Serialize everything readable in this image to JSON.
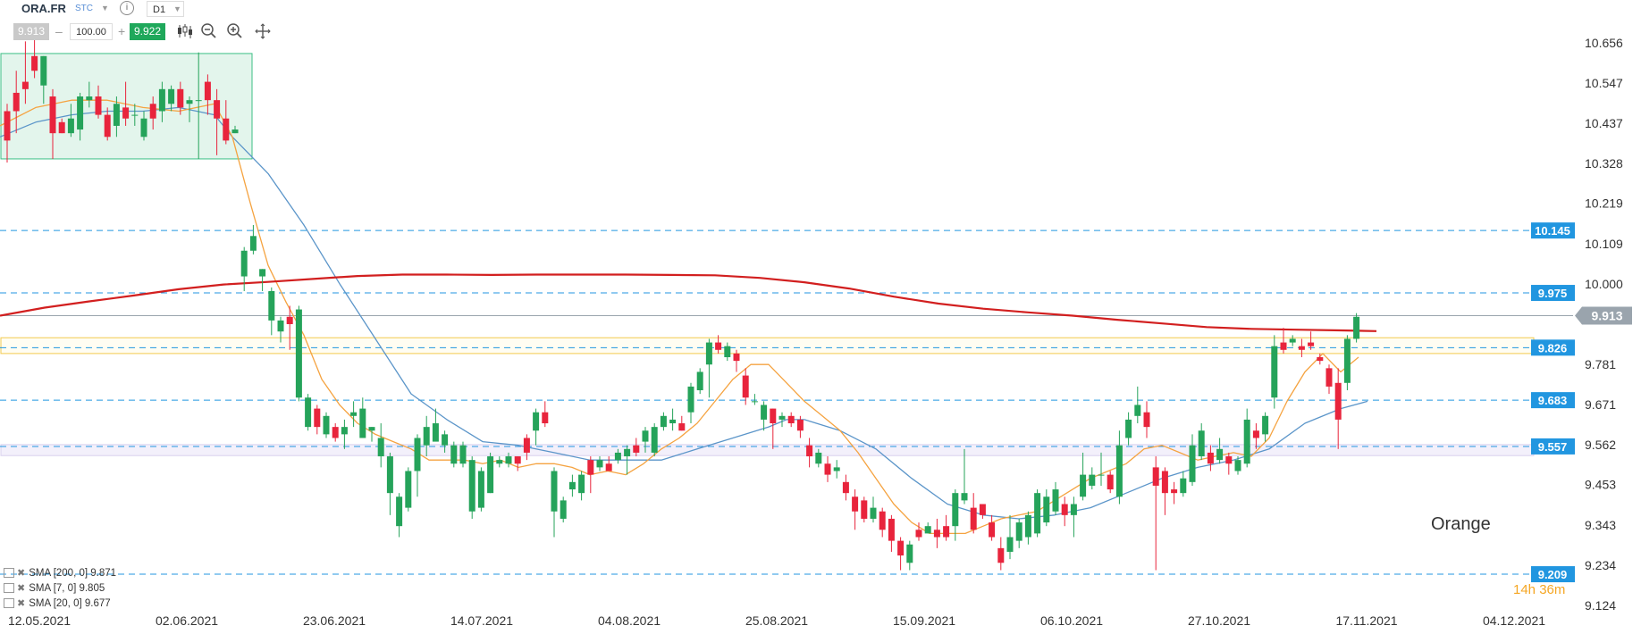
{
  "toolbar": {
    "symbol": "ORA.FR",
    "symbol_type": "STC",
    "info_icon": "info-icon",
    "timeframe": "D1",
    "bid": "9.913",
    "quantity": "100.00",
    "ask": "9.922",
    "icons": [
      "candlestick-icon",
      "zoom-out-icon",
      "zoom-in-icon",
      "crosshair-icon"
    ]
  },
  "legend": [
    {
      "label": "SMA [200, 0] 9.871",
      "color": "#d21f1f"
    },
    {
      "label": "SMA [7, 0] 9.805",
      "color": "#f5a340"
    },
    {
      "label": "SMA [20, 0] 9.677",
      "color": "#5b95c9"
    }
  ],
  "instrument_name": "Orange",
  "countdown": "14h 36m",
  "chart_data": {
    "type": "candlestick",
    "ylim": [
      9.124,
      10.73
    ],
    "y_ticks": [
      10.656,
      10.547,
      10.437,
      10.328,
      10.219,
      10.109,
      10.0,
      9.781,
      9.671,
      9.562,
      9.453,
      9.343,
      9.234,
      9.124
    ],
    "x_ticks": [
      "12.05.2021",
      "02.06.2021",
      "23.06.2021",
      "14.07.2021",
      "04.08.2021",
      "25.08.2021",
      "15.09.2021",
      "06.10.2021",
      "27.10.2021",
      "17.11.2021",
      "04.12.2021"
    ],
    "current_price": {
      "value": 9.913,
      "label": "9.913",
      "color": "#9aa4ad"
    },
    "levels": [
      {
        "value": 10.145,
        "label": "10.145"
      },
      {
        "value": 9.975,
        "label": "9.975"
      },
      {
        "value": 9.826,
        "label": "9.826"
      },
      {
        "value": 9.683,
        "label": "9.683"
      },
      {
        "value": 9.557,
        "label": "9.557"
      },
      {
        "value": 9.209,
        "label": "9.209"
      }
    ],
    "zones": [
      {
        "y1": 10.627,
        "y2": 10.34,
        "color": "green"
      },
      {
        "y1": 9.853,
        "y2": 9.81,
        "color": "yellow"
      },
      {
        "y1": 9.562,
        "y2": 9.532,
        "color": "lavender"
      }
    ],
    "colors": {
      "up": "#25a35a",
      "down": "#e8243c",
      "level": "#2196e0",
      "sma200": "#d21f1f",
      "sma7": "#f5a340",
      "sma20": "#5b95c9"
    },
    "candles": [
      [
        10.47,
        10.39,
        10.49,
        10.33
      ],
      [
        10.52,
        10.47,
        10.58,
        10.41
      ],
      [
        10.55,
        10.53,
        10.66,
        10.49
      ],
      [
        10.62,
        10.58,
        10.68,
        10.56
      ],
      [
        10.54,
        10.62,
        10.62,
        10.49
      ],
      [
        10.51,
        10.41,
        10.53,
        10.34
      ],
      [
        10.44,
        10.41,
        10.45,
        10.41
      ],
      [
        10.41,
        10.45,
        10.49,
        10.4
      ],
      [
        10.42,
        10.51,
        10.52,
        10.39
      ],
      [
        10.5,
        10.51,
        10.55,
        10.48
      ],
      [
        10.51,
        10.46,
        10.54,
        10.45
      ],
      [
        10.46,
        10.4,
        10.48,
        10.39
      ],
      [
        10.43,
        10.49,
        10.51,
        10.4
      ],
      [
        10.48,
        10.45,
        10.55,
        10.43
      ],
      [
        10.46,
        10.46,
        10.49,
        10.43
      ],
      [
        10.4,
        10.45,
        10.47,
        10.39
      ],
      [
        10.49,
        10.45,
        10.51,
        10.42
      ],
      [
        10.47,
        10.53,
        10.55,
        10.44
      ],
      [
        10.49,
        10.53,
        10.54,
        10.47
      ],
      [
        10.53,
        10.48,
        10.55,
        10.46
      ],
      [
        10.49,
        10.5,
        10.51,
        10.44
      ],
      [
        10.5,
        10.5,
        10.63,
        10.34
      ],
      [
        10.55,
        10.5,
        10.57,
        10.46
      ],
      [
        10.5,
        10.45,
        10.53,
        10.35
      ],
      [
        10.45,
        10.39,
        10.5,
        10.38
      ],
      [
        10.41,
        10.42,
        10.43,
        10.41
      ],
      [
        10.02,
        10.09,
        10.1,
        9.98
      ],
      [
        10.09,
        10.13,
        10.16,
        10.08
      ],
      [
        10.02,
        10.04,
        10.04,
        9.98
      ],
      [
        9.9,
        9.98,
        9.99,
        9.86
      ],
      [
        9.87,
        9.9,
        9.91,
        9.84
      ],
      [
        9.91,
        9.89,
        9.94,
        9.82
      ],
      [
        9.69,
        9.93,
        9.94,
        9.68
      ],
      [
        9.61,
        9.69,
        9.7,
        9.6
      ],
      [
        9.66,
        9.61,
        9.67,
        9.59
      ],
      [
        9.59,
        9.64,
        9.65,
        9.58
      ],
      [
        9.61,
        9.58,
        9.62,
        9.57
      ],
      [
        9.59,
        9.61,
        9.63,
        9.55
      ],
      [
        9.64,
        9.65,
        9.68,
        9.61
      ],
      [
        9.58,
        9.66,
        9.69,
        9.58
      ],
      [
        9.6,
        9.61,
        9.61,
        9.57
      ],
      [
        9.53,
        9.58,
        9.62,
        9.5
      ],
      [
        9.43,
        9.53,
        9.54,
        9.37
      ],
      [
        9.34,
        9.42,
        9.43,
        9.31
      ],
      [
        9.39,
        9.49,
        9.5,
        9.38
      ],
      [
        9.49,
        9.58,
        9.59,
        9.42
      ],
      [
        9.56,
        9.61,
        9.64,
        9.53
      ],
      [
        9.57,
        9.62,
        9.66,
        9.58
      ],
      [
        9.56,
        9.59,
        9.6,
        9.54
      ],
      [
        9.51,
        9.56,
        9.57,
        9.5
      ],
      [
        9.51,
        9.56,
        9.57,
        9.5
      ],
      [
        9.38,
        9.52,
        9.53,
        9.36
      ],
      [
        9.39,
        9.49,
        9.5,
        9.38
      ],
      [
        9.43,
        9.53,
        9.54,
        9.43
      ],
      [
        9.51,
        9.52,
        9.53,
        9.5
      ],
      [
        9.51,
        9.53,
        9.54,
        9.5
      ],
      [
        9.53,
        9.51,
        9.53,
        9.49
      ],
      [
        9.58,
        9.54,
        9.59,
        9.52
      ],
      [
        9.6,
        9.65,
        9.66,
        9.56
      ],
      [
        9.65,
        9.62,
        9.68,
        9.61
      ],
      [
        9.38,
        9.49,
        9.5,
        9.31
      ],
      [
        9.36,
        9.41,
        9.42,
        9.35
      ],
      [
        9.44,
        9.46,
        9.48,
        9.42
      ],
      [
        9.43,
        9.48,
        9.49,
        9.41
      ],
      [
        9.52,
        9.48,
        9.53,
        9.43
      ],
      [
        9.5,
        9.52,
        9.53,
        9.49
      ],
      [
        9.51,
        9.49,
        9.53,
        9.5
      ],
      [
        9.52,
        9.54,
        9.55,
        9.51
      ],
      [
        9.53,
        9.55,
        9.56,
        9.48
      ],
      [
        9.56,
        9.54,
        9.58,
        9.53
      ],
      [
        9.57,
        9.6,
        9.61,
        9.54
      ],
      [
        9.54,
        9.61,
        9.62,
        9.53
      ],
      [
        9.61,
        9.64,
        9.65,
        9.6
      ],
      [
        9.62,
        9.63,
        9.66,
        9.6
      ],
      [
        9.62,
        9.6,
        9.64,
        9.6
      ],
      [
        9.65,
        9.72,
        9.73,
        9.62
      ],
      [
        9.71,
        9.76,
        9.77,
        9.7
      ],
      [
        9.78,
        9.84,
        9.85,
        9.69
      ],
      [
        9.84,
        9.82,
        9.86,
        9.81
      ],
      [
        9.8,
        9.83,
        9.84,
        9.79
      ],
      [
        9.81,
        9.79,
        9.82,
        9.76
      ],
      [
        9.75,
        9.69,
        9.77,
        9.67
      ],
      [
        9.68,
        9.68,
        9.7,
        9.67
      ],
      [
        9.63,
        9.67,
        9.68,
        9.6
      ],
      [
        9.66,
        9.62,
        9.66,
        9.55
      ],
      [
        9.63,
        9.64,
        9.65,
        9.61
      ],
      [
        9.64,
        9.62,
        9.65,
        9.61
      ],
      [
        9.63,
        9.6,
        9.64,
        9.58
      ],
      [
        9.56,
        9.53,
        9.58,
        9.5
      ],
      [
        9.51,
        9.54,
        9.55,
        9.5
      ],
      [
        9.51,
        9.48,
        9.53,
        9.46
      ],
      [
        9.49,
        9.5,
        9.52,
        9.47
      ],
      [
        9.46,
        9.43,
        9.48,
        9.41
      ],
      [
        9.42,
        9.38,
        9.44,
        9.33
      ],
      [
        9.41,
        9.36,
        9.42,
        9.35
      ],
      [
        9.36,
        9.39,
        9.42,
        9.35
      ],
      [
        9.38,
        9.33,
        9.39,
        9.31
      ],
      [
        9.36,
        9.3,
        9.37,
        9.27
      ],
      [
        9.3,
        9.26,
        9.31,
        9.22
      ],
      [
        9.24,
        9.29,
        9.3,
        9.22
      ],
      [
        9.33,
        9.31,
        9.35,
        9.3
      ],
      [
        9.32,
        9.34,
        9.35,
        9.32
      ],
      [
        9.33,
        9.31,
        9.36,
        9.28
      ],
      [
        9.34,
        9.31,
        9.37,
        9.3
      ],
      [
        9.34,
        9.43,
        9.44,
        9.3
      ],
      [
        9.41,
        9.43,
        9.55,
        9.4
      ],
      [
        9.39,
        9.33,
        9.43,
        9.32
      ],
      [
        9.4,
        9.37,
        9.4,
        9.36
      ],
      [
        9.35,
        9.31,
        9.37,
        9.3
      ],
      [
        9.28,
        9.24,
        9.31,
        9.22
      ],
      [
        9.27,
        9.31,
        9.37,
        9.25
      ],
      [
        9.3,
        9.35,
        9.36,
        9.28
      ],
      [
        9.31,
        9.37,
        9.38,
        9.29
      ],
      [
        9.32,
        9.43,
        9.44,
        9.31
      ],
      [
        9.35,
        9.42,
        9.44,
        9.34
      ],
      [
        9.38,
        9.44,
        9.46,
        9.37
      ],
      [
        9.4,
        9.37,
        9.42,
        9.34
      ],
      [
        9.37,
        9.4,
        9.42,
        9.31
      ],
      [
        9.42,
        9.48,
        9.54,
        9.41
      ],
      [
        9.45,
        9.48,
        9.5,
        9.44
      ],
      [
        9.48,
        9.48,
        9.54,
        9.45
      ],
      [
        9.48,
        9.44,
        9.49,
        9.43
      ],
      [
        9.42,
        9.56,
        9.6,
        9.4
      ],
      [
        9.58,
        9.63,
        9.65,
        9.56
      ],
      [
        9.64,
        9.67,
        9.72,
        9.62
      ],
      [
        9.65,
        9.61,
        9.68,
        9.58
      ],
      [
        9.5,
        9.45,
        9.53,
        9.22
      ],
      [
        9.49,
        9.43,
        9.5,
        9.37
      ],
      [
        9.44,
        9.43,
        9.46,
        9.4
      ],
      [
        9.43,
        9.47,
        9.49,
        9.42
      ],
      [
        9.46,
        9.56,
        9.59,
        9.45
      ],
      [
        9.53,
        9.6,
        9.62,
        9.52
      ],
      [
        9.54,
        9.51,
        9.56,
        9.49
      ],
      [
        9.52,
        9.55,
        9.58,
        9.51
      ],
      [
        9.53,
        9.51,
        9.54,
        9.48
      ],
      [
        9.49,
        9.52,
        9.53,
        9.48
      ],
      [
        9.51,
        9.63,
        9.66,
        9.5
      ],
      [
        9.6,
        9.58,
        9.62,
        9.55
      ],
      [
        9.59,
        9.64,
        9.65,
        9.57
      ],
      [
        9.69,
        9.83,
        9.86,
        9.66
      ],
      [
        9.84,
        9.82,
        9.88,
        9.81
      ],
      [
        9.84,
        9.85,
        9.86,
        9.83
      ],
      [
        9.83,
        9.82,
        9.85,
        9.8
      ],
      [
        9.84,
        9.83,
        9.87,
        9.82
      ],
      [
        9.8,
        9.79,
        9.81,
        9.78
      ],
      [
        9.77,
        9.72,
        9.78,
        9.7
      ],
      [
        9.73,
        9.63,
        9.77,
        9.55
      ],
      [
        9.73,
        9.85,
        9.86,
        9.71
      ],
      [
        9.85,
        9.91,
        9.92,
        9.84
      ]
    ],
    "sma200": [
      [
        0,
        9.913
      ],
      [
        50,
        9.935
      ],
      [
        100,
        9.952
      ],
      [
        150,
        9.968
      ],
      [
        200,
        9.985
      ],
      [
        250,
        9.998
      ],
      [
        300,
        10.005
      ],
      [
        350,
        10.013
      ],
      [
        400,
        10.021
      ],
      [
        450,
        10.025
      ],
      [
        500,
        10.025
      ],
      [
        550,
        10.024
      ],
      [
        600,
        10.025
      ],
      [
        650,
        10.025
      ],
      [
        700,
        10.025
      ],
      [
        750,
        10.024
      ],
      [
        800,
        10.023
      ],
      [
        850,
        10.016
      ],
      [
        900,
        10.004
      ],
      [
        950,
        9.987
      ],
      [
        1000,
        9.965
      ],
      [
        1050,
        9.946
      ],
      [
        1100,
        9.932
      ],
      [
        1150,
        9.922
      ],
      [
        1200,
        9.913
      ],
      [
        1250,
        9.902
      ],
      [
        1300,
        9.892
      ],
      [
        1350,
        9.882
      ],
      [
        1400,
        9.877
      ],
      [
        1450,
        9.875
      ],
      [
        1500,
        9.873
      ],
      [
        1540,
        9.871
      ]
    ],
    "sma7": [
      [
        0,
        10.43
      ],
      [
        40,
        10.48
      ],
      [
        80,
        10.5
      ],
      [
        120,
        10.5
      ],
      [
        160,
        10.48
      ],
      [
        200,
        10.47
      ],
      [
        240,
        10.49
      ],
      [
        260,
        10.4
      ],
      [
        280,
        10.22
      ],
      [
        300,
        10.05
      ],
      [
        320,
        9.95
      ],
      [
        340,
        9.86
      ],
      [
        360,
        9.74
      ],
      [
        380,
        9.67
      ],
      [
        400,
        9.62
      ],
      [
        420,
        9.59
      ],
      [
        440,
        9.57
      ],
      [
        460,
        9.55
      ],
      [
        480,
        9.52
      ],
      [
        500,
        9.52
      ],
      [
        520,
        9.52
      ],
      [
        540,
        9.51
      ],
      [
        560,
        9.52
      ],
      [
        580,
        9.5
      ],
      [
        600,
        9.51
      ],
      [
        620,
        9.51
      ],
      [
        640,
        9.5
      ],
      [
        660,
        9.48
      ],
      [
        680,
        9.49
      ],
      [
        700,
        9.48
      ],
      [
        720,
        9.51
      ],
      [
        740,
        9.55
      ],
      [
        760,
        9.58
      ],
      [
        780,
        9.62
      ],
      [
        800,
        9.68
      ],
      [
        820,
        9.74
      ],
      [
        840,
        9.78
      ],
      [
        860,
        9.78
      ],
      [
        880,
        9.73
      ],
      [
        900,
        9.68
      ],
      [
        920,
        9.64
      ],
      [
        940,
        9.6
      ],
      [
        960,
        9.54
      ],
      [
        980,
        9.47
      ],
      [
        1000,
        9.4
      ],
      [
        1020,
        9.35
      ],
      [
        1040,
        9.32
      ],
      [
        1060,
        9.32
      ],
      [
        1080,
        9.32
      ],
      [
        1100,
        9.34
      ],
      [
        1120,
        9.36
      ],
      [
        1140,
        9.37
      ],
      [
        1160,
        9.38
      ],
      [
        1180,
        9.41
      ],
      [
        1200,
        9.44
      ],
      [
        1220,
        9.47
      ],
      [
        1240,
        9.49
      ],
      [
        1260,
        9.51
      ],
      [
        1280,
        9.55
      ],
      [
        1300,
        9.56
      ],
      [
        1320,
        9.54
      ],
      [
        1340,
        9.52
      ],
      [
        1360,
        9.53
      ],
      [
        1380,
        9.54
      ],
      [
        1400,
        9.53
      ],
      [
        1420,
        9.58
      ],
      [
        1440,
        9.68
      ],
      [
        1460,
        9.76
      ],
      [
        1480,
        9.81
      ],
      [
        1500,
        9.76
      ],
      [
        1520,
        9.8
      ]
    ],
    "sma20": [
      [
        0,
        10.4
      ],
      [
        40,
        10.44
      ],
      [
        80,
        10.46
      ],
      [
        120,
        10.47
      ],
      [
        160,
        10.47
      ],
      [
        200,
        10.48
      ],
      [
        240,
        10.46
      ],
      [
        260,
        10.4
      ],
      [
        280,
        10.35
      ],
      [
        300,
        10.3
      ],
      [
        340,
        10.16
      ],
      [
        380,
        10.0
      ],
      [
        420,
        9.85
      ],
      [
        460,
        9.7
      ],
      [
        500,
        9.63
      ],
      [
        540,
        9.57
      ],
      [
        580,
        9.56
      ],
      [
        620,
        9.54
      ],
      [
        660,
        9.52
      ],
      [
        700,
        9.52
      ],
      [
        740,
        9.52
      ],
      [
        780,
        9.55
      ],
      [
        820,
        9.58
      ],
      [
        860,
        9.61
      ],
      [
        880,
        9.63
      ],
      [
        900,
        9.63
      ],
      [
        940,
        9.6
      ],
      [
        980,
        9.55
      ],
      [
        1020,
        9.47
      ],
      [
        1060,
        9.4
      ],
      [
        1100,
        9.37
      ],
      [
        1140,
        9.36
      ],
      [
        1180,
        9.37
      ],
      [
        1220,
        9.39
      ],
      [
        1260,
        9.43
      ],
      [
        1300,
        9.47
      ],
      [
        1340,
        9.5
      ],
      [
        1380,
        9.52
      ],
      [
        1420,
        9.55
      ],
      [
        1460,
        9.62
      ],
      [
        1500,
        9.66
      ],
      [
        1530,
        9.68
      ]
    ]
  }
}
